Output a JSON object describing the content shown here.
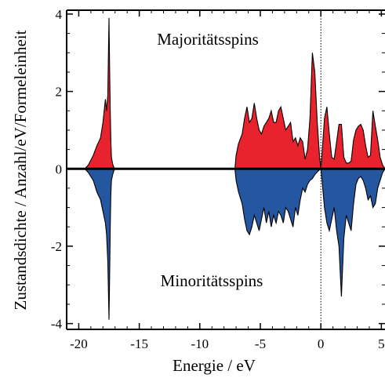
{
  "chart_data": {
    "type": "area",
    "xlabel": "Energie / eV",
    "ylabel": "Zustandsdichte / Anzahl/eV/Formeleinheit",
    "xlim": [
      -21,
      5.3
    ],
    "ylim": [
      -4.15,
      4.1
    ],
    "x_ticks": [
      -20,
      -15,
      -10,
      -5,
      0,
      5
    ],
    "x_tick_labels": [
      "-20",
      "-15",
      "-10",
      "-5",
      "0",
      "5"
    ],
    "y_ticks": [
      -4,
      -2,
      0,
      2,
      4
    ],
    "y_tick_labels": [
      "-4",
      "-2",
      "0",
      "2",
      "4"
    ],
    "grid": false,
    "legend": "none",
    "fermi_level_line": 0,
    "annotations": [
      {
        "text": "Majoritätsspins"
      },
      {
        "text": "Minoritätsspins"
      }
    ],
    "colors": {
      "majority_fill": "#e8232d",
      "minority_fill": "#2556a0",
      "outline": "#000000",
      "baseline": "#000000"
    },
    "series": [
      {
        "name": "Majoritätsspins",
        "x": [
          -19.5,
          -19.2,
          -18.8,
          -18.5,
          -18.2,
          -18.0,
          -17.8,
          -17.7,
          -17.6,
          -17.55,
          -17.5,
          -17.45,
          -17.4,
          -17.35,
          -17.3,
          -17.2,
          -17.1,
          -17.0,
          -7.1,
          -7.0,
          -6.8,
          -6.5,
          -6.3,
          -6.1,
          -5.9,
          -5.7,
          -5.5,
          -5.3,
          -5.1,
          -4.9,
          -4.7,
          -4.5,
          -4.3,
          -4.1,
          -3.9,
          -3.7,
          -3.5,
          -3.3,
          -3.1,
          -2.9,
          -2.7,
          -2.5,
          -2.3,
          -2.1,
          -1.9,
          -1.7,
          -1.5,
          -1.3,
          -1.1,
          -0.9,
          -0.7,
          -0.5,
          -0.3,
          -0.1,
          0.0,
          0.0,
          0.1,
          0.3,
          0.5,
          0.7,
          0.9,
          1.1,
          1.3,
          1.5,
          1.7,
          1.9,
          2.1,
          2.3,
          2.5,
          2.7,
          2.9,
          3.1,
          3.3,
          3.5,
          3.7,
          3.9,
          4.1,
          4.3,
          4.5,
          4.7,
          4.9,
          5.1,
          5.3
        ],
        "values": [
          0.0,
          0.1,
          0.35,
          0.6,
          0.8,
          1.2,
          1.8,
          1.5,
          1.9,
          3.0,
          3.9,
          2.6,
          1.5,
          0.8,
          0.3,
          0.12,
          0.04,
          0.0,
          0.0,
          0.35,
          0.65,
          0.9,
          1.3,
          1.6,
          1.2,
          1.3,
          1.7,
          1.3,
          1.0,
          0.9,
          1.1,
          1.2,
          1.3,
          1.5,
          1.2,
          1.2,
          1.5,
          1.6,
          1.3,
          1.0,
          1.1,
          1.2,
          0.7,
          0.8,
          0.6,
          0.8,
          0.7,
          0.25,
          0.5,
          1.3,
          3.0,
          2.5,
          1.2,
          0.3,
          0.0,
          0.0,
          0.4,
          1.3,
          1.6,
          0.9,
          0.3,
          0.25,
          0.7,
          1.15,
          1.15,
          0.3,
          0.15,
          0.15,
          0.2,
          0.75,
          1.0,
          1.1,
          1.15,
          1.0,
          0.6,
          0.3,
          0.35,
          1.5,
          1.1,
          0.75,
          0.3,
          0.1,
          0.0
        ]
      },
      {
        "name": "Minoritätsspins",
        "x": [
          -19.5,
          -19.2,
          -18.8,
          -18.5,
          -18.2,
          -18.0,
          -17.8,
          -17.7,
          -17.6,
          -17.55,
          -17.5,
          -17.45,
          -17.4,
          -17.35,
          -17.3,
          -17.2,
          -17.1,
          -17.0,
          -7.1,
          -7.0,
          -6.8,
          -6.5,
          -6.3,
          -6.1,
          -5.9,
          -5.7,
          -5.5,
          -5.3,
          -5.1,
          -4.9,
          -4.7,
          -4.5,
          -4.3,
          -4.1,
          -3.9,
          -3.7,
          -3.5,
          -3.3,
          -3.1,
          -2.9,
          -2.7,
          -2.5,
          -2.3,
          -2.1,
          -1.9,
          -1.7,
          -1.5,
          -1.3,
          -1.1,
          -0.9,
          -0.7,
          -0.5,
          -0.3,
          -0.1,
          0.0,
          0.0,
          0.1,
          0.3,
          0.5,
          0.7,
          0.9,
          1.1,
          1.3,
          1.5,
          1.7,
          1.9,
          2.1,
          2.3,
          2.5,
          2.7,
          2.9,
          3.1,
          3.3,
          3.5,
          3.7,
          3.9,
          4.1,
          4.3,
          4.5,
          4.7,
          4.9,
          5.1,
          5.3
        ],
        "values": [
          0.0,
          -0.1,
          -0.3,
          -0.6,
          -0.8,
          -1.1,
          -1.4,
          -1.7,
          -2.4,
          -3.2,
          -3.9,
          -2.8,
          -1.5,
          -0.7,
          -0.3,
          -0.15,
          -0.05,
          0.0,
          0.0,
          -0.3,
          -0.6,
          -0.9,
          -1.3,
          -1.6,
          -1.7,
          -1.5,
          -1.2,
          -1.4,
          -1.6,
          -1.3,
          -1.0,
          -1.4,
          -1.1,
          -1.5,
          -1.2,
          -1.4,
          -1.1,
          -1.2,
          -1.4,
          -1.0,
          -1.1,
          -1.3,
          -1.5,
          -1.0,
          -1.2,
          -0.8,
          -0.5,
          -0.6,
          -0.4,
          -0.3,
          -0.25,
          -0.15,
          -0.08,
          -0.02,
          0.0,
          0.0,
          -0.3,
          -1.0,
          -1.4,
          -1.6,
          -1.3,
          -1.0,
          -1.6,
          -2.0,
          -3.3,
          -1.8,
          -1.2,
          -1.4,
          -1.6,
          -0.9,
          -0.4,
          -0.25,
          -0.2,
          -0.3,
          -0.5,
          -0.8,
          -0.7,
          -1.0,
          -0.9,
          -0.5,
          -0.3,
          -0.1,
          0.0
        ]
      }
    ]
  }
}
